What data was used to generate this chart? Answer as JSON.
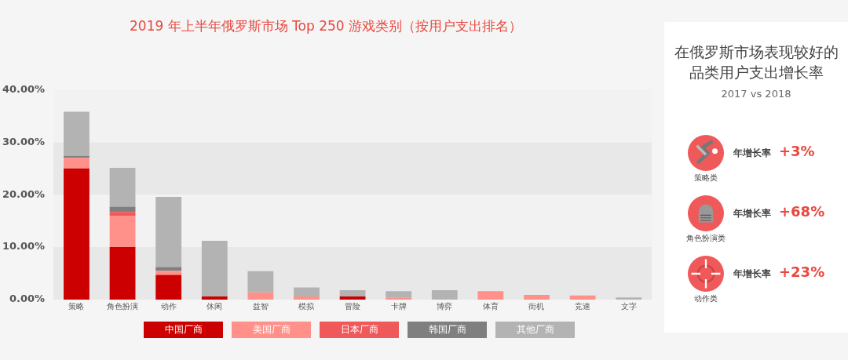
{
  "chart_data": [
    {
      "type": "bar",
      "title": "2019 年上半年俄罗斯市场 Top 250 游戏类别（按用户支出排名）",
      "categories": [
        "策略",
        "角色扮演",
        "动作",
        "休闲",
        "益智",
        "模拟",
        "冒险",
        "卡牌",
        "博弈",
        "体育",
        "街机",
        "竞速",
        "文字"
      ],
      "stacked": true,
      "series": [
        {
          "name": "中国厂商",
          "color": "#cc0000",
          "values": [
            25,
            10,
            4.7,
            0.6,
            0,
            0,
            0.6,
            0,
            0,
            0,
            0,
            0,
            0
          ]
        },
        {
          "name": "美国厂商",
          "color": "#ff918a",
          "values": [
            2,
            6,
            0.8,
            0,
            1.4,
            0.6,
            0,
            0.4,
            0,
            1.6,
            0.9,
            0.8,
            0
          ]
        },
        {
          "name": "日本厂商",
          "color": "#f0595a",
          "values": [
            0,
            0.7,
            0,
            0,
            0,
            0,
            0,
            0,
            0,
            0,
            0,
            0,
            0
          ]
        },
        {
          "name": "韩国厂商",
          "color": "#7f7f7f",
          "values": [
            0.4,
            1,
            0.7,
            0,
            0,
            0,
            0,
            0,
            0,
            0,
            0,
            0,
            0
          ]
        },
        {
          "name": "其他厂商",
          "color": "#b3b3b3",
          "values": [
            8.4,
            7.4,
            13.4,
            10.6,
            4,
            1.7,
            1.2,
            1.2,
            1.8,
            0,
            0,
            0,
            0.4
          ]
        }
      ],
      "ylim": [
        0,
        40
      ],
      "yticks": [
        {
          "value": 0,
          "label": "0.00%"
        },
        {
          "value": 10,
          "label": "10.00%"
        },
        {
          "value": 20,
          "label": "20.00%"
        },
        {
          "value": 30,
          "label": "30.00%"
        },
        {
          "value": 40,
          "label": "40.00%"
        }
      ],
      "legend": "bottom"
    },
    {
      "type": "other",
      "title": "在俄罗斯市场表现较好的品类用户支出增长率",
      "subtitle": "2017 vs 2018",
      "annotations": [
        "策略类",
        "年增长率",
        "+3%",
        "角色扮演类",
        "年增长率",
        "+68%",
        "动作类",
        "年增长率",
        "+23%"
      ]
    }
  ]
}
